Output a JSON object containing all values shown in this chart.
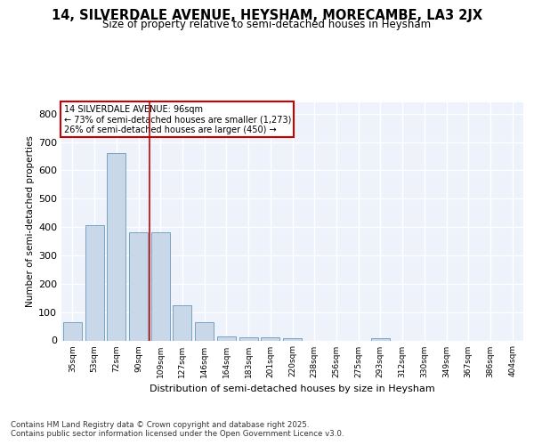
{
  "title1": "14, SILVERDALE AVENUE, HEYSHAM, MORECAMBE, LA3 2JX",
  "title2": "Size of property relative to semi-detached houses in Heysham",
  "xlabel": "Distribution of semi-detached houses by size in Heysham",
  "ylabel": "Number of semi-detached properties",
  "bin_labels": [
    "35sqm",
    "53sqm",
    "72sqm",
    "90sqm",
    "109sqm",
    "127sqm",
    "146sqm",
    "164sqm",
    "183sqm",
    "201sqm",
    "220sqm",
    "238sqm",
    "256sqm",
    "275sqm",
    "293sqm",
    "312sqm",
    "330sqm",
    "349sqm",
    "367sqm",
    "386sqm",
    "404sqm"
  ],
  "bar_values": [
    63,
    407,
    660,
    380,
    380,
    125,
    63,
    15,
    10,
    10,
    8,
    0,
    0,
    0,
    7,
    0,
    0,
    0,
    0,
    0,
    0
  ],
  "bar_color": "#c8d8e8",
  "bar_edge_color": "#6699bb",
  "vline_x": 3.5,
  "vline_color": "#cc0000",
  "annotation_title": "14 SILVERDALE AVENUE: 96sqm",
  "annotation_line1": "← 73% of semi-detached houses are smaller (1,273)",
  "annotation_line2": "26% of semi-detached houses are larger (450) →",
  "annotation_box_color": "#ffffff",
  "annotation_box_edge": "#cc0000",
  "footer1": "Contains HM Land Registry data © Crown copyright and database right 2025.",
  "footer2": "Contains public sector information licensed under the Open Government Licence v3.0.",
  "background_color": "#eef2fa",
  "grid_color": "#ffffff",
  "ylim": [
    0,
    840
  ],
  "yticks": [
    0,
    100,
    200,
    300,
    400,
    500,
    600,
    700,
    800
  ]
}
